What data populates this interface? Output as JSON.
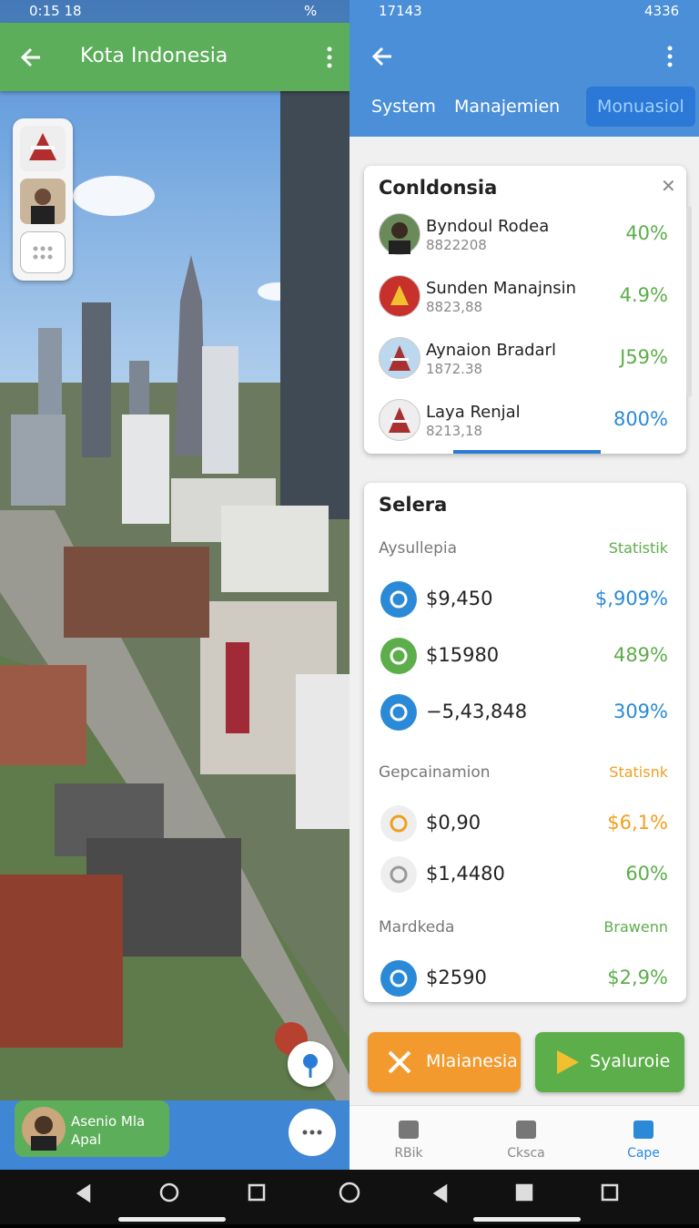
{
  "left": {
    "status": {
      "time": "0:15 18",
      "battery": "%"
    },
    "header": {
      "title": "Kota Indonesia"
    },
    "profile": {
      "name": "Asenio Mla",
      "subtitle": "Apal"
    }
  },
  "right": {
    "status": {
      "time": "17143",
      "battery": "4336"
    },
    "tabs": [
      "System",
      "Manajemien",
      "Monuasiol"
    ],
    "list_card": {
      "title": "Conldonsia",
      "rows": [
        {
          "name": "Byndoul Rodea",
          "code": "8822208",
          "percent": "40%",
          "color": "#5cae4a"
        },
        {
          "name": "Sunden Manajnsin",
          "code": "8823,88",
          "percent": "4.9%",
          "color": "#5cae4a"
        },
        {
          "name": "Aynaion Bradarl",
          "code": "1872.38",
          "percent": "J59%",
          "color": "#5cae4a"
        },
        {
          "name": "Laya Renjal",
          "code": "8213,18",
          "percent": "800%",
          "color": "#2a8ad8"
        }
      ]
    },
    "stats_card": {
      "title": "Selera",
      "sections": [
        {
          "label": "Aysullepia",
          "tag": "Statistik",
          "tag_color": "#5cae4a",
          "rows": [
            {
              "amount": "$9,450",
              "percent": "$,909%",
              "color": "#2a8ad8"
            },
            {
              "amount": "$15980",
              "percent": "489%",
              "color": "#5cae4a"
            },
            {
              "amount": "−5,43,848",
              "percent": "309%",
              "color": "#2a8ad8"
            }
          ]
        },
        {
          "label": "Gepcainamion",
          "tag": "Statisnk",
          "tag_color": "#f0a020",
          "rows": [
            {
              "amount": "$0,90",
              "percent": "$6,1%",
              "color": "#f0a020"
            },
            {
              "amount": "$1,4480",
              "percent": "60%",
              "color": "#5cae4a"
            }
          ]
        },
        {
          "label": "Mardkeda",
          "tag": "Brawenn",
          "tag_color": "#5cae4a",
          "rows": [
            {
              "amount": "$2590",
              "percent": "$2,9%",
              "color": "#5cae4a"
            }
          ]
        }
      ]
    },
    "buttons": [
      "Mlaianesia",
      "Syaluroie"
    ],
    "nav": [
      "RBik",
      "Cksca",
      "Cape"
    ]
  }
}
